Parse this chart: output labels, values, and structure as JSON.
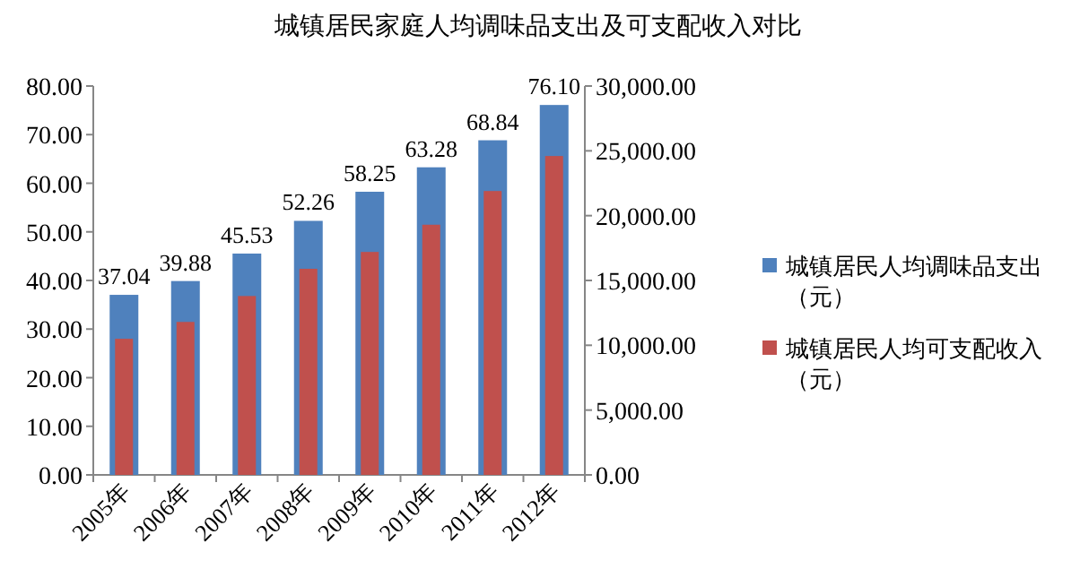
{
  "chart_data": {
    "type": "bar",
    "title": "城镇居民家庭人均调味品支出及可支配收入对比",
    "categories": [
      "2005年",
      "2006年",
      "2007年",
      "2008年",
      "2009年",
      "2010年",
      "2011年",
      "2012年"
    ],
    "series": [
      {
        "name": "城镇居民人均调味品支出（元）",
        "color": "#4f81bd",
        "values": [
          37.04,
          39.88,
          45.53,
          52.26,
          58.25,
          63.28,
          68.84,
          76.1
        ],
        "value_labels": [
          "37.04",
          "39.88",
          "45.53",
          "52.26",
          "58.25",
          "63.28",
          "68.84",
          "76.10"
        ]
      },
      {
        "name": "城镇居民人均可支配收入（元）",
        "color": "#c0504d",
        "axis": "y2",
        "values": [
          10500,
          11800,
          13800,
          15900,
          17200,
          19300,
          21900,
          24600
        ]
      }
    ],
    "ylim": [
      0,
      80
    ],
    "yticks": [
      {
        "value": 0,
        "label": "0.00"
      },
      {
        "value": 10,
        "label": "10.00"
      },
      {
        "value": 20,
        "label": "20.00"
      },
      {
        "value": 30,
        "label": "30.00"
      },
      {
        "value": 40,
        "label": "40.00"
      },
      {
        "value": 50,
        "label": "50.00"
      },
      {
        "value": 60,
        "label": "60.00"
      },
      {
        "value": 70,
        "label": "70.00"
      },
      {
        "value": 80,
        "label": "80.00"
      }
    ],
    "y2lim": [
      0,
      30000
    ],
    "y2ticks": [
      {
        "value": 0,
        "label": "0.00"
      },
      {
        "value": 5000,
        "label": "5,000.00"
      },
      {
        "value": 10000,
        "label": "10,000.00"
      },
      {
        "value": 15000,
        "label": "15,000.00"
      },
      {
        "value": 20000,
        "label": "20,000.00"
      },
      {
        "value": 25000,
        "label": "25,000.00"
      },
      {
        "value": 30000,
        "label": "30,000.00"
      }
    ],
    "grid": false,
    "legend": "right"
  }
}
